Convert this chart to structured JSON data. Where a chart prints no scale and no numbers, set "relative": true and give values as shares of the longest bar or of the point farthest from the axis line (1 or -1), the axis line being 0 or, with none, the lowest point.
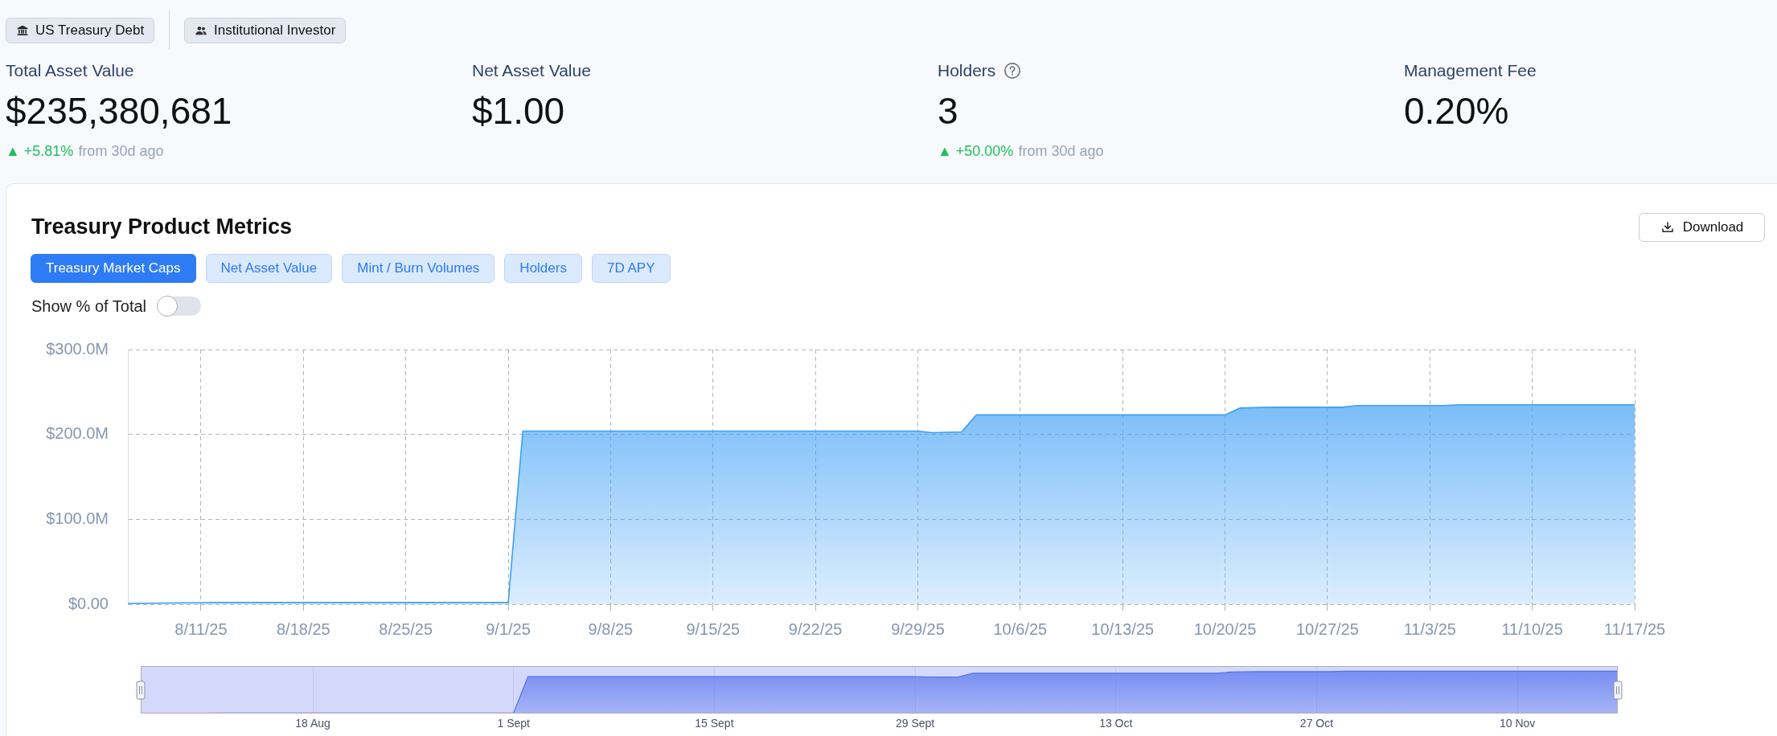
{
  "chart_data": [
    {
      "type": "other",
      "annotations": [
        "US Treasury Debt",
        "Institutional Investor"
      ]
    },
    {
      "type": "other",
      "title": "Total Asset Value",
      "annotations": [
        "$235,380,681",
        "▲ +5.81%",
        "from 30d ago"
      ]
    },
    {
      "type": "other",
      "title": "Net Asset Value",
      "annotations": [
        "$1.00"
      ]
    },
    {
      "type": "other",
      "title": "Holders",
      "annotations": [
        "3",
        "▲ +50.00%",
        "from 30d ago"
      ]
    },
    {
      "type": "other",
      "title": "Management Fee",
      "annotations": [
        "0.20%"
      ]
    },
    {
      "type": "area",
      "title": "Treasury Product Metrics",
      "annotations": [
        "Treasury Market Caps",
        "Net Asset Value",
        "Mint / Burn Volumes",
        "Holders",
        "7D APY",
        "Download",
        "Show % of Total"
      ],
      "x": [
        "--08-06",
        "--08-12",
        "--09-01",
        "--09-02",
        "--09-29",
        "--09-30",
        "--10-02",
        "--10-03",
        "--10-20",
        "--10-21",
        "--10-23",
        "--10-28",
        "--10-29",
        "--11-04",
        "--11-05",
        "--11-17"
      ],
      "values": [
        1,
        2,
        2,
        204,
        204,
        202,
        203,
        223,
        223,
        231,
        232,
        232,
        234,
        234,
        235,
        235
      ],
      "color": "#3d9ff6",
      "xlim": [
        "--08-06",
        "--11-17"
      ],
      "xticks": [
        {
          "value": "--08-11",
          "label": "8/11/25"
        },
        {
          "value": "--08-18",
          "label": "8/18/25"
        },
        {
          "value": "--08-25",
          "label": "8/25/25"
        },
        {
          "value": "--09-01",
          "label": "9/1/25"
        },
        {
          "value": "--09-08",
          "label": "9/8/25"
        },
        {
          "value": "--09-15",
          "label": "9/15/25"
        },
        {
          "value": "--09-22",
          "label": "9/22/25"
        },
        {
          "value": "--09-29",
          "label": "9/29/25"
        },
        {
          "value": "--10-06",
          "label": "10/6/25"
        },
        {
          "value": "--10-13",
          "label": "10/13/25"
        },
        {
          "value": "--10-20",
          "label": "10/20/25"
        },
        {
          "value": "--10-27",
          "label": "10/27/25"
        },
        {
          "value": "--11-03",
          "label": "11/3/25"
        },
        {
          "value": "--11-10",
          "label": "11/10/25"
        },
        {
          "value": "--11-17",
          "label": "11/17/25"
        }
      ],
      "ylim": [
        0,
        300
      ],
      "yticks": [
        {
          "value": 0,
          "label": "$0.00"
        },
        {
          "value": 100,
          "label": "$100.0M"
        },
        {
          "value": 200,
          "label": "$200.0M"
        },
        {
          "value": 300,
          "label": "$300.0M"
        }
      ],
      "grid": true
    },
    {
      "type": "area",
      "relative": true,
      "x": [
        "--08-06",
        "--08-12",
        "--09-01",
        "--09-02",
        "--09-29",
        "--09-30",
        "--10-02",
        "--10-03",
        "--10-20",
        "--10-21",
        "--10-23",
        "--10-28",
        "--10-29",
        "--11-04",
        "--11-05",
        "--11-17"
      ],
      "values": [
        0,
        0.01,
        0.01,
        0.87,
        0.87,
        0.86,
        0.86,
        0.95,
        0.95,
        0.98,
        0.99,
        0.99,
        1,
        1,
        1,
        1
      ],
      "color": "#5270ee",
      "xlim": [
        "--08-06",
        "--11-17"
      ],
      "xticks": [
        {
          "value": "--08-18",
          "label": "18 Aug"
        },
        {
          "value": "--09-01",
          "label": "1 Sept"
        },
        {
          "value": "--09-15",
          "label": "15 Sept"
        },
        {
          "value": "--09-29",
          "label": "29 Sept"
        },
        {
          "value": "--10-13",
          "label": "13 Oct"
        },
        {
          "value": "--10-27",
          "label": "27 Oct"
        },
        {
          "value": "--11-10",
          "label": "10 Nov"
        }
      ],
      "grid": "x",
      "bands": [
        {
          "axis": "x",
          "from": "--08-06",
          "to": "--11-17",
          "color": "#d4d9fb"
        }
      ]
    }
  ]
}
